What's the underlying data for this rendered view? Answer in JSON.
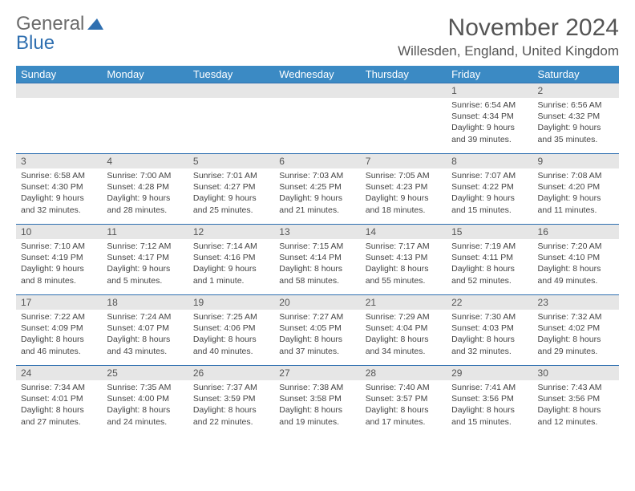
{
  "brand": {
    "part1": "General",
    "part2": "Blue"
  },
  "title": "November 2024",
  "location": "Willesden, England, United Kingdom",
  "colors": {
    "header_bg": "#3b8ac4",
    "header_text": "#ffffff",
    "daynum_bg": "#e6e6e6",
    "border": "#2f6fb0",
    "brand_gray": "#6b6b6b",
    "brand_blue": "#2f6fb0"
  },
  "weekdays": [
    "Sunday",
    "Monday",
    "Tuesday",
    "Wednesday",
    "Thursday",
    "Friday",
    "Saturday"
  ],
  "weeks": [
    [
      {
        "n": "",
        "sr": "",
        "ss": "",
        "dl": ""
      },
      {
        "n": "",
        "sr": "",
        "ss": "",
        "dl": ""
      },
      {
        "n": "",
        "sr": "",
        "ss": "",
        "dl": ""
      },
      {
        "n": "",
        "sr": "",
        "ss": "",
        "dl": ""
      },
      {
        "n": "",
        "sr": "",
        "ss": "",
        "dl": ""
      },
      {
        "n": "1",
        "sr": "Sunrise: 6:54 AM",
        "ss": "Sunset: 4:34 PM",
        "dl": "Daylight: 9 hours and 39 minutes."
      },
      {
        "n": "2",
        "sr": "Sunrise: 6:56 AM",
        "ss": "Sunset: 4:32 PM",
        "dl": "Daylight: 9 hours and 35 minutes."
      }
    ],
    [
      {
        "n": "3",
        "sr": "Sunrise: 6:58 AM",
        "ss": "Sunset: 4:30 PM",
        "dl": "Daylight: 9 hours and 32 minutes."
      },
      {
        "n": "4",
        "sr": "Sunrise: 7:00 AM",
        "ss": "Sunset: 4:28 PM",
        "dl": "Daylight: 9 hours and 28 minutes."
      },
      {
        "n": "5",
        "sr": "Sunrise: 7:01 AM",
        "ss": "Sunset: 4:27 PM",
        "dl": "Daylight: 9 hours and 25 minutes."
      },
      {
        "n": "6",
        "sr": "Sunrise: 7:03 AM",
        "ss": "Sunset: 4:25 PM",
        "dl": "Daylight: 9 hours and 21 minutes."
      },
      {
        "n": "7",
        "sr": "Sunrise: 7:05 AM",
        "ss": "Sunset: 4:23 PM",
        "dl": "Daylight: 9 hours and 18 minutes."
      },
      {
        "n": "8",
        "sr": "Sunrise: 7:07 AM",
        "ss": "Sunset: 4:22 PM",
        "dl": "Daylight: 9 hours and 15 minutes."
      },
      {
        "n": "9",
        "sr": "Sunrise: 7:08 AM",
        "ss": "Sunset: 4:20 PM",
        "dl": "Daylight: 9 hours and 11 minutes."
      }
    ],
    [
      {
        "n": "10",
        "sr": "Sunrise: 7:10 AM",
        "ss": "Sunset: 4:19 PM",
        "dl": "Daylight: 9 hours and 8 minutes."
      },
      {
        "n": "11",
        "sr": "Sunrise: 7:12 AM",
        "ss": "Sunset: 4:17 PM",
        "dl": "Daylight: 9 hours and 5 minutes."
      },
      {
        "n": "12",
        "sr": "Sunrise: 7:14 AM",
        "ss": "Sunset: 4:16 PM",
        "dl": "Daylight: 9 hours and 1 minute."
      },
      {
        "n": "13",
        "sr": "Sunrise: 7:15 AM",
        "ss": "Sunset: 4:14 PM",
        "dl": "Daylight: 8 hours and 58 minutes."
      },
      {
        "n": "14",
        "sr": "Sunrise: 7:17 AM",
        "ss": "Sunset: 4:13 PM",
        "dl": "Daylight: 8 hours and 55 minutes."
      },
      {
        "n": "15",
        "sr": "Sunrise: 7:19 AM",
        "ss": "Sunset: 4:11 PM",
        "dl": "Daylight: 8 hours and 52 minutes."
      },
      {
        "n": "16",
        "sr": "Sunrise: 7:20 AM",
        "ss": "Sunset: 4:10 PM",
        "dl": "Daylight: 8 hours and 49 minutes."
      }
    ],
    [
      {
        "n": "17",
        "sr": "Sunrise: 7:22 AM",
        "ss": "Sunset: 4:09 PM",
        "dl": "Daylight: 8 hours and 46 minutes."
      },
      {
        "n": "18",
        "sr": "Sunrise: 7:24 AM",
        "ss": "Sunset: 4:07 PM",
        "dl": "Daylight: 8 hours and 43 minutes."
      },
      {
        "n": "19",
        "sr": "Sunrise: 7:25 AM",
        "ss": "Sunset: 4:06 PM",
        "dl": "Daylight: 8 hours and 40 minutes."
      },
      {
        "n": "20",
        "sr": "Sunrise: 7:27 AM",
        "ss": "Sunset: 4:05 PM",
        "dl": "Daylight: 8 hours and 37 minutes."
      },
      {
        "n": "21",
        "sr": "Sunrise: 7:29 AM",
        "ss": "Sunset: 4:04 PM",
        "dl": "Daylight: 8 hours and 34 minutes."
      },
      {
        "n": "22",
        "sr": "Sunrise: 7:30 AM",
        "ss": "Sunset: 4:03 PM",
        "dl": "Daylight: 8 hours and 32 minutes."
      },
      {
        "n": "23",
        "sr": "Sunrise: 7:32 AM",
        "ss": "Sunset: 4:02 PM",
        "dl": "Daylight: 8 hours and 29 minutes."
      }
    ],
    [
      {
        "n": "24",
        "sr": "Sunrise: 7:34 AM",
        "ss": "Sunset: 4:01 PM",
        "dl": "Daylight: 8 hours and 27 minutes."
      },
      {
        "n": "25",
        "sr": "Sunrise: 7:35 AM",
        "ss": "Sunset: 4:00 PM",
        "dl": "Daylight: 8 hours and 24 minutes."
      },
      {
        "n": "26",
        "sr": "Sunrise: 7:37 AM",
        "ss": "Sunset: 3:59 PM",
        "dl": "Daylight: 8 hours and 22 minutes."
      },
      {
        "n": "27",
        "sr": "Sunrise: 7:38 AM",
        "ss": "Sunset: 3:58 PM",
        "dl": "Daylight: 8 hours and 19 minutes."
      },
      {
        "n": "28",
        "sr": "Sunrise: 7:40 AM",
        "ss": "Sunset: 3:57 PM",
        "dl": "Daylight: 8 hours and 17 minutes."
      },
      {
        "n": "29",
        "sr": "Sunrise: 7:41 AM",
        "ss": "Sunset: 3:56 PM",
        "dl": "Daylight: 8 hours and 15 minutes."
      },
      {
        "n": "30",
        "sr": "Sunrise: 7:43 AM",
        "ss": "Sunset: 3:56 PM",
        "dl": "Daylight: 8 hours and 12 minutes."
      }
    ]
  ]
}
